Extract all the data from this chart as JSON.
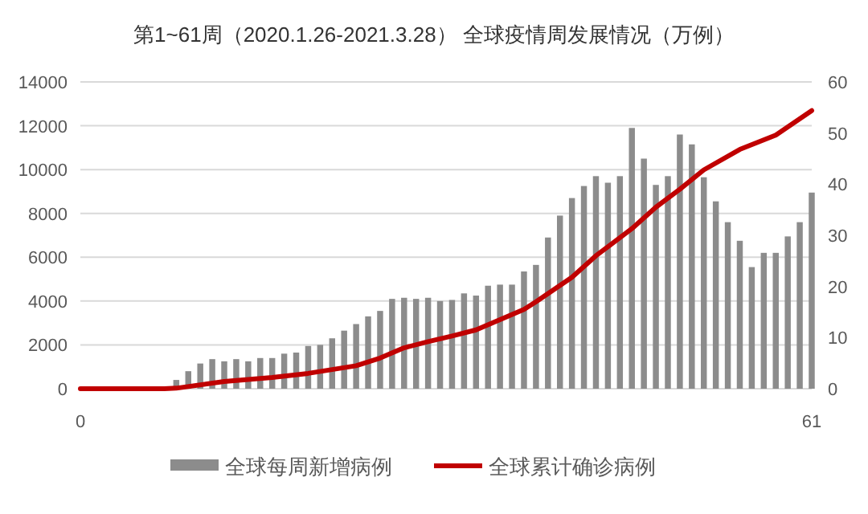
{
  "chart_data": {
    "type": "bar",
    "title": "第1~61周（2020.1.26-2021.3.28） 全球疫情周发展情况（万例）",
    "x": [
      1,
      2,
      3,
      4,
      5,
      6,
      7,
      8,
      9,
      10,
      11,
      12,
      13,
      14,
      15,
      16,
      17,
      18,
      19,
      20,
      21,
      22,
      23,
      24,
      25,
      26,
      27,
      28,
      29,
      30,
      31,
      32,
      33,
      34,
      35,
      36,
      37,
      38,
      39,
      40,
      41,
      42,
      43,
      44,
      45,
      46,
      47,
      48,
      49,
      50,
      51,
      52,
      53,
      54,
      55,
      56,
      57,
      58,
      59,
      60,
      61
    ],
    "series": [
      {
        "name": "全球每周新增病例",
        "color": "#8c8c8c",
        "values": [
          0,
          0,
          0,
          0,
          0,
          null,
          null,
          400,
          800,
          1150,
          1350,
          1250,
          1350,
          1250,
          1400,
          1400,
          1600,
          1650,
          1950,
          2000,
          2300,
          2650,
          2950,
          3300,
          3550,
          4100,
          4150,
          4100,
          4150,
          4000,
          4050,
          4350,
          4250,
          4700,
          4750,
          4750,
          5350,
          5650,
          6900,
          7900,
          8700,
          9250,
          9700,
          9400,
          9700,
          11900,
          10500,
          9300,
          9700,
          11600,
          11150,
          9650,
          8550,
          7600,
          6750,
          5550,
          6200,
          6200,
          6950,
          7600,
          8950
        ]
      },
      {
        "name": "全球累计确诊病例",
        "type": "line",
        "axis": "y2",
        "color": "#c00000",
        "x": [
          0,
          7,
          8,
          12,
          16,
          19,
          23,
          25,
          27,
          29,
          31,
          33,
          37,
          38,
          41,
          43,
          46,
          48,
          50,
          52,
          55,
          58,
          61
        ],
        "values": [
          0,
          0,
          0.1,
          1.4,
          2.2,
          3,
          4.5,
          6,
          8,
          9.2,
          10.3,
          11.5,
          15.5,
          17,
          21.8,
          26,
          31.3,
          35.5,
          39,
          42.8,
          46.8,
          49.6,
          54.4
        ]
      }
    ],
    "xlim": [
      0,
      61
    ],
    "xticks": [
      0,
      61
    ],
    "ylim": [
      0,
      14000
    ],
    "yticks": [
      0,
      2000,
      4000,
      6000,
      8000,
      10000,
      12000,
      14000
    ],
    "y2lim": [
      0,
      60
    ],
    "y2ticks": [
      0,
      10,
      20,
      30,
      40,
      50,
      60
    ],
    "grid": "y",
    "legend": "bottom"
  }
}
